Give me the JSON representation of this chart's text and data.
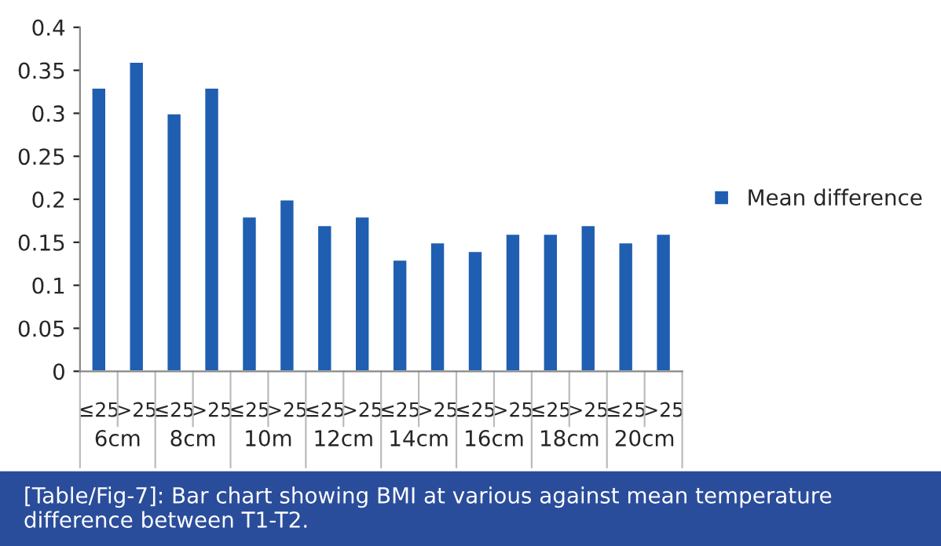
{
  "chart_data": {
    "type": "bar",
    "categories": [
      "≤25",
      ">25",
      "≤25",
      ">25",
      "≤25",
      ">25",
      "≤25",
      ">25",
      "≤25",
      ">25",
      "≤25",
      ">25",
      "≤25",
      ">25",
      "≤25",
      ">25"
    ],
    "series": [
      {
        "name": "Mean difference",
        "color": "#1f5eb0",
        "values": [
          0.33,
          0.36,
          0.3,
          0.33,
          0.18,
          0.2,
          0.17,
          0.18,
          0.13,
          0.15,
          0.14,
          0.16,
          0.16,
          0.17,
          0.15,
          0.16
        ]
      }
    ],
    "ylim": [
      0,
      0.4
    ],
    "yticks": [
      0,
      0.05,
      0.1,
      0.15,
      0.2,
      0.25,
      0.3,
      0.35,
      0.4
    ],
    "legend": "right",
    "grid": false,
    "annotations": [
      "6cm",
      "8cm",
      "10m",
      "12cm",
      "14cm",
      "16cm",
      "18cm",
      "20cm",
      "[Table/Fig-7]: Bar chart showing BMI at various against mean temperature difference between T1-T2."
    ]
  }
}
